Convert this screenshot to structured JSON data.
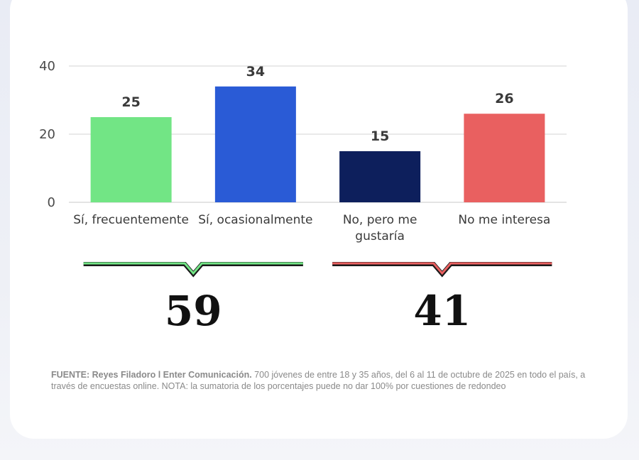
{
  "chart_data": {
    "type": "bar",
    "categories": [
      [
        "Sí, frecuentemente"
      ],
      [
        "Sí, ocasionalmente"
      ],
      [
        "No, pero me",
        "gustaría"
      ],
      [
        "No me interesa"
      ]
    ],
    "values": [
      25,
      34,
      15,
      26
    ],
    "colors": [
      "#72e585",
      "#2a5bd6",
      "#0d1f5c",
      "#e96060"
    ],
    "yticks": [
      0,
      20,
      40
    ],
    "ylim": [
      0,
      40
    ],
    "grid": true,
    "groups": [
      {
        "total": "59",
        "color": "#72e585",
        "spans": [
          0,
          1
        ]
      },
      {
        "total": "41",
        "color": "#e96060",
        "spans": [
          2,
          3
        ]
      }
    ]
  },
  "footer": {
    "source_bold": "FUENTE: Reyes Filadoro l Enter Comunicación.",
    "source_text": " 700 jóvenes de entre 18 y 35 años, del 6 al 11 de octubre de 2025 en todo el país, a través de encuestas online.  NOTA: la sumatoria de los porcentajes puede no dar 100% por cuestiones de redondeo"
  }
}
